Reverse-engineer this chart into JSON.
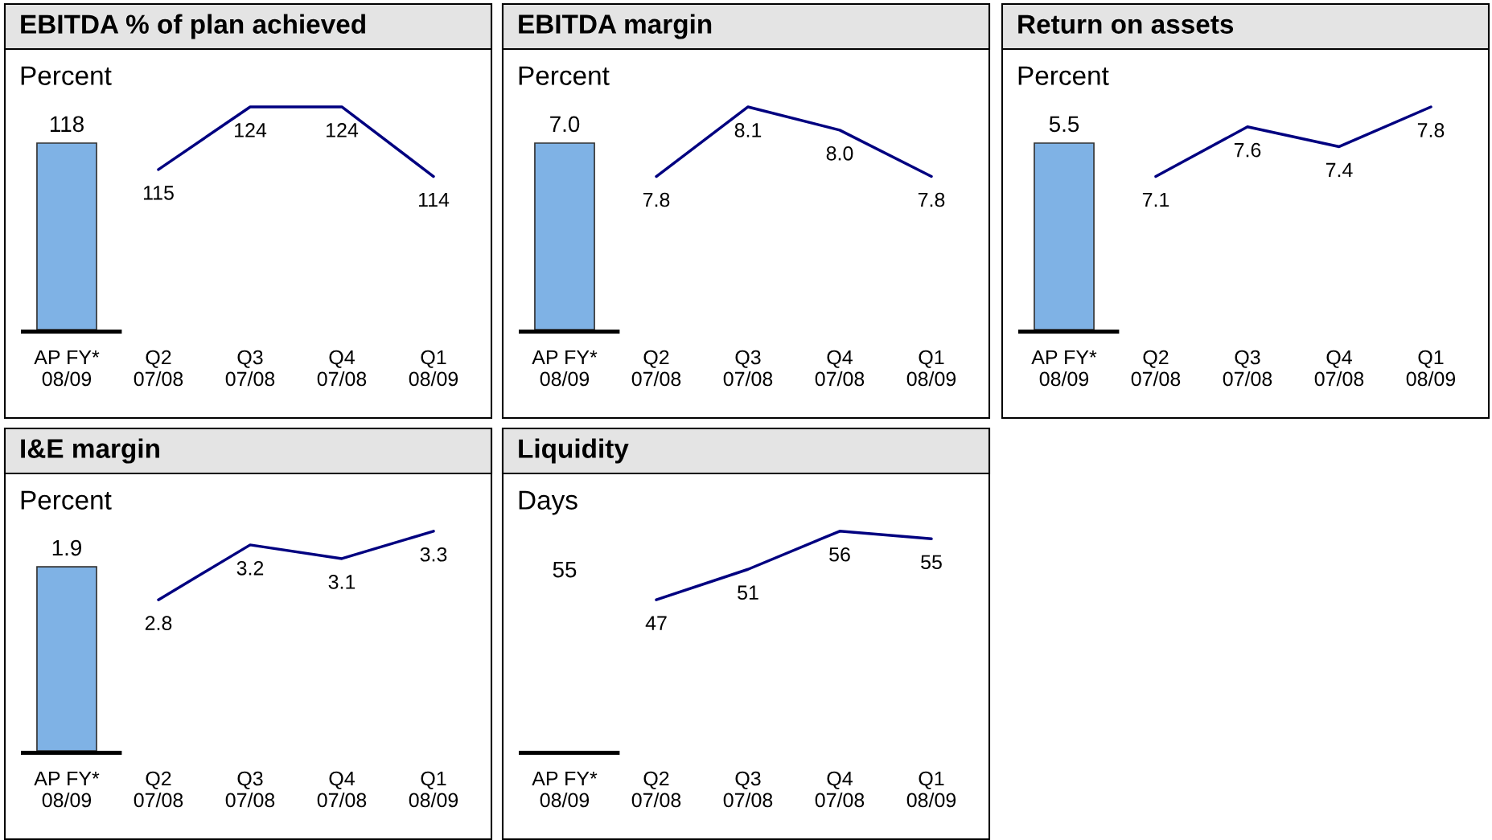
{
  "chart_data": [
    {
      "type": "bar",
      "title": "EBITDA % of plan achieved",
      "subtitle": "Percent",
      "categories": [
        "AP FY*\n08/09",
        "Q2\n07/08",
        "Q3\n07/08",
        "Q4\n07/08",
        "Q1\n08/09"
      ],
      "series": [
        {
          "color": "#7fb2e5",
          "values": [
            118,
            null,
            null,
            null,
            null
          ],
          "value_labels": [
            "118",
            null,
            null,
            null,
            null
          ]
        },
        {
          "type": "line",
          "axis": "y2",
          "color": "#000080",
          "values": [
            null,
            115,
            124,
            124,
            114
          ],
          "value_labels": [
            null,
            "115",
            "124",
            "124",
            "114"
          ]
        }
      ]
    },
    {
      "type": "bar",
      "title": "EBITDA margin",
      "subtitle": "Percent",
      "categories": [
        "AP FY*\n08/09",
        "Q2\n07/08",
        "Q3\n07/08",
        "Q4\n07/08",
        "Q1\n08/09"
      ],
      "series": [
        {
          "color": "#7fb2e5",
          "values": [
            7.0,
            null,
            null,
            null,
            null
          ],
          "value_labels": [
            "7.0",
            null,
            null,
            null,
            null
          ]
        },
        {
          "type": "line",
          "axis": "y2",
          "color": "#000080",
          "values": [
            null,
            7.8,
            8.1,
            8.0,
            7.8
          ],
          "value_labels": [
            null,
            "7.8",
            "8.1",
            "8.0",
            "7.8"
          ]
        }
      ]
    },
    {
      "type": "bar",
      "title": "Return on assets",
      "subtitle": "Percent",
      "categories": [
        "AP FY*\n08/09",
        "Q2\n07/08",
        "Q3\n07/08",
        "Q4\n07/08",
        "Q1\n08/09"
      ],
      "series": [
        {
          "color": "#7fb2e5",
          "values": [
            5.5,
            null,
            null,
            null,
            null
          ],
          "value_labels": [
            "5.5",
            null,
            null,
            null,
            null
          ]
        },
        {
          "type": "line",
          "axis": "y2",
          "color": "#000080",
          "values": [
            null,
            7.1,
            7.6,
            7.4,
            7.8
          ],
          "value_labels": [
            null,
            "7.1",
            "7.6",
            "7.4",
            "7.8"
          ]
        }
      ]
    },
    {
      "type": "bar",
      "title": "I&E margin",
      "subtitle": "Percent",
      "categories": [
        "AP FY*\n08/09",
        "Q2\n07/08",
        "Q3\n07/08",
        "Q4\n07/08",
        "Q1\n08/09"
      ],
      "series": [
        {
          "color": "#7fb2e5",
          "values": [
            1.9,
            null,
            null,
            null,
            null
          ],
          "value_labels": [
            "1.9",
            null,
            null,
            null,
            null
          ]
        },
        {
          "type": "line",
          "axis": "y2",
          "color": "#000080",
          "values": [
            null,
            2.8,
            3.2,
            3.1,
            3.3
          ],
          "value_labels": [
            null,
            "2.8",
            "3.2",
            "3.1",
            "3.3"
          ]
        }
      ]
    },
    {
      "type": "line",
      "title": "Liquidity",
      "subtitle": "Days",
      "categories": [
        "AP FY*\n08/09",
        "Q2\n07/08",
        "Q3\n07/08",
        "Q4\n07/08",
        "Q1\n08/09"
      ],
      "annotations": [
        "55"
      ],
      "series": [
        {
          "color": "#000080",
          "values": [
            null,
            47,
            51,
            56,
            55
          ],
          "value_labels": [
            null,
            "47",
            "51",
            "56",
            "55"
          ]
        }
      ]
    }
  ]
}
